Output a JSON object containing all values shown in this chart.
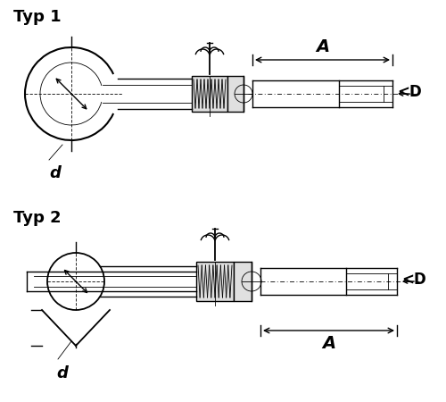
{
  "bg_color": "#ffffff",
  "line_color": "#000000",
  "title1": "Typ 1",
  "title2": "Typ 2",
  "label_A": "A",
  "label_D": "<D",
  "label_d": "d",
  "title_fontsize": 13,
  "label_fontsize": 11
}
